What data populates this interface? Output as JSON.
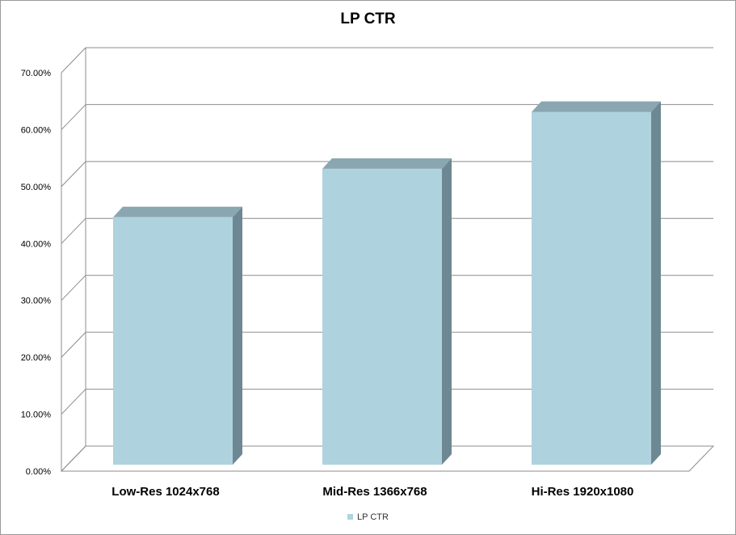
{
  "chart_data": {
    "type": "bar",
    "title": "LP CTR",
    "categories": [
      "Low-Res 1024x768",
      "Mid-Res 1366x768",
      "Hi-Res 1920x1080"
    ],
    "series": [
      {
        "name": "LP CTR",
        "values": [
          0.449,
          0.534,
          0.634
        ]
      }
    ],
    "ylim": [
      0,
      0.7
    ],
    "yticks": [
      "0.00%",
      "10.00%",
      "20.00%",
      "30.00%",
      "40.00%",
      "50.00%",
      "60.00%",
      "70.00%"
    ],
    "grid": true,
    "legend": "bottom",
    "three_d": true,
    "colors": {
      "bar_front": "#aed3df",
      "bar_top": "#8aa6b1",
      "bar_side": "#6e8893",
      "grid": "#8c8c8c",
      "frame": "#9a9a9a"
    }
  }
}
